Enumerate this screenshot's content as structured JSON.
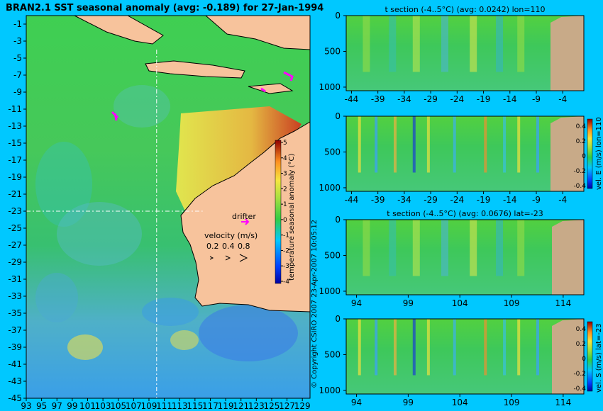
{
  "main_title": "BRAN2.1 SST seasonal anomaly (avg: -0.189) for 27-Jan-1994",
  "copyright_text": "© Copyright CSIRO 2007   23-Apr-2007 10:05:12",
  "map": {
    "lat_ticks": [
      "-1",
      "-3",
      "-5",
      "-7",
      "-9",
      "-11",
      "-13",
      "-15",
      "-17",
      "-19",
      "-21",
      "-23",
      "-25",
      "-27",
      "-29",
      "-31",
      "-33",
      "-35",
      "-37",
      "-39",
      "-41",
      "-43",
      "-45"
    ],
    "lon_ticks": [
      "93",
      "95",
      "97",
      "99",
      "101",
      "103",
      "105",
      "107",
      "109",
      "111",
      "113",
      "115",
      "117",
      "119",
      "121",
      "123",
      "125",
      "127",
      "129"
    ],
    "lon_range": [
      93,
      130
    ],
    "lat_range": [
      -45,
      0
    ],
    "section_lon": 110,
    "section_lat": -23,
    "drifter_label": "drifter",
    "velocity_label": "velocity (m/s)",
    "velocity_scale": [
      "0.2",
      "0.4",
      "0.8"
    ],
    "colorbar_ticks": [
      "5",
      "4",
      "3",
      "2",
      "1",
      "0",
      "-1",
      "-2",
      "-3",
      "-4"
    ],
    "colorbar_label": "temperature seasonal anomaly (°C)",
    "colors": {
      "land": "#f7c39c",
      "ocean_mid": "#33c644",
      "ocean_cool": "#38b5ff",
      "ocean_warm": "#f0e84b",
      "drifter": "#ff00ff",
      "background": "#00c8ff"
    }
  },
  "chart_data": [
    {
      "type": "heatmap",
      "title": "t section (-4..5°C) (avg: 0.0242) lon=110",
      "x_ticks": [
        "-44",
        "-39",
        "-34",
        "-29",
        "-24",
        "-19",
        "-14",
        "-9",
        "-4"
      ],
      "y_ticks": [
        "0",
        "500",
        "1000"
      ],
      "xlim": [
        -45,
        0
      ],
      "ylim": [
        1050,
        0
      ]
    },
    {
      "type": "heatmap",
      "title": "",
      "x_ticks": [
        "-44",
        "-39",
        "-34",
        "-29",
        "-24",
        "-19",
        "-14",
        "-9",
        "-4"
      ],
      "y_ticks": [
        "0",
        "500",
        "1000"
      ],
      "xlim": [
        -45,
        0
      ],
      "ylim": [
        1050,
        0
      ],
      "colorbar_ticks": [
        "0.4",
        "0.2",
        "0",
        "-0.2",
        "-0.4"
      ],
      "colorbar_label": "vel. E (m/s) lon=110"
    },
    {
      "type": "heatmap",
      "title": "t section (-4..5°C) (avg: 0.0676) lat=-23",
      "x_ticks": [
        "94",
        "99",
        "104",
        "109",
        "114"
      ],
      "y_ticks": [
        "0",
        "500",
        "1000"
      ],
      "xlim": [
        93,
        116
      ],
      "ylim": [
        1050,
        0
      ]
    },
    {
      "type": "heatmap",
      "title": "",
      "x_ticks": [
        "94",
        "99",
        "104",
        "109",
        "114"
      ],
      "y_ticks": [
        "0",
        "500",
        "1000"
      ],
      "xlim": [
        93,
        116
      ],
      "ylim": [
        1050,
        0
      ],
      "colorbar_ticks": [
        "0.4",
        "0.2",
        "0",
        "-0.2",
        "-0.4"
      ],
      "colorbar_label": "vel. S (m/s) lat=-23"
    }
  ]
}
